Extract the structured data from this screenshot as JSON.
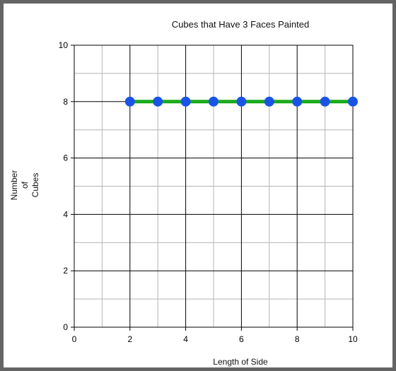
{
  "chart_data": {
    "type": "line",
    "title": "Cubes that Have 3 Faces Painted",
    "xlabel": "Length of Side",
    "ylabel_lines": [
      "Number",
      "of",
      "Cubes"
    ],
    "xlim": [
      0,
      10
    ],
    "ylim": [
      0,
      10
    ],
    "x_ticks": [
      0,
      2,
      4,
      6,
      8,
      10
    ],
    "y_ticks": [
      0,
      2,
      4,
      6,
      8,
      10
    ],
    "minor_grid_step": 1,
    "grid": true,
    "x": [
      2,
      3,
      4,
      5,
      6,
      7,
      8,
      9,
      10
    ],
    "y": [
      8,
      8,
      8,
      8,
      8,
      8,
      8,
      8,
      8
    ],
    "colors": {
      "line": "#1aaa1a",
      "marker": "#1a54e6",
      "major_grid": "#000000",
      "minor_grid": "#b4b4b4",
      "frame": "#646464"
    }
  }
}
